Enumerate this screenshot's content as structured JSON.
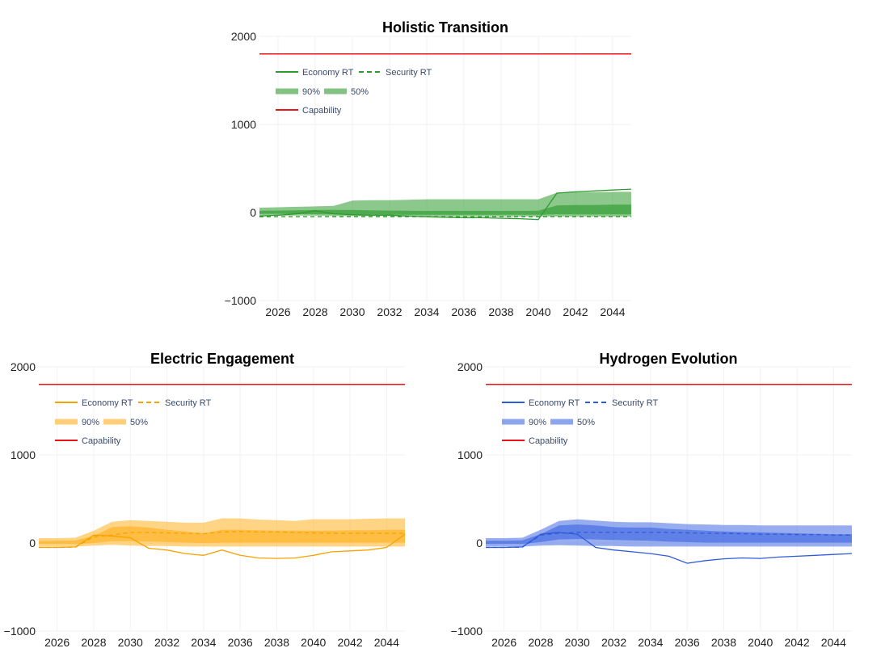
{
  "chart_data": [
    {
      "type": "area",
      "title": "Holistic Transition",
      "color": "#2e9b2e",
      "band_color": "#2e9b2e",
      "xlabel": "",
      "ylabel": "",
      "xlim": [
        2025.0,
        2045.0
      ],
      "ylim": [
        -1000,
        2000
      ],
      "yticks": [
        -1000,
        0,
        1000,
        2000
      ],
      "ytick_labels": [
        "−1000",
        "0",
        "1000",
        "2000"
      ],
      "xticks": [
        2026,
        2028,
        2030,
        2032,
        2034,
        2036,
        2038,
        2040,
        2042,
        2044
      ],
      "capability": 1800,
      "legend": {
        "economy": "Economy RT",
        "security": "Security RT",
        "p90": "90%",
        "p50": "50%",
        "capability": "Capability"
      },
      "years": [
        2025,
        2026,
        2027,
        2028,
        2029,
        2030,
        2031,
        2032,
        2033,
        2034,
        2035,
        2036,
        2037,
        2038,
        2039,
        2040,
        2041,
        2042,
        2043,
        2044,
        2045
      ],
      "p90_upper": [
        55,
        60,
        65,
        70,
        75,
        135,
        140,
        140,
        145,
        150,
        150,
        150,
        150,
        150,
        150,
        150,
        225,
        230,
        230,
        235,
        235
      ],
      "p90_lower": [
        -35,
        -35,
        -35,
        -35,
        -40,
        -40,
        -40,
        -40,
        -45,
        -45,
        -45,
        -45,
        -45,
        -45,
        -45,
        -45,
        -45,
        -45,
        -45,
        -45,
        -45
      ],
      "p50_upper": [
        20,
        22,
        25,
        28,
        30,
        28,
        25,
        22,
        20,
        18,
        18,
        18,
        18,
        18,
        18,
        20,
        80,
        85,
        85,
        90,
        90
      ],
      "p50_lower": [
        -15,
        -15,
        -18,
        -18,
        -20,
        -22,
        -22,
        -25,
        -25,
        -25,
        -25,
        -25,
        -25,
        -25,
        -25,
        -25,
        -20,
        -20,
        -20,
        -20,
        -20
      ],
      "economy": [
        -40,
        -30,
        -15,
        20,
        -15,
        -25,
        -30,
        -30,
        -40,
        -50,
        -55,
        -60,
        -60,
        -65,
        -70,
        -80,
        220,
        235,
        245,
        255,
        265
      ],
      "security": [
        -50,
        -48,
        -48,
        -48,
        -48,
        -48,
        -48,
        -48,
        -48,
        -48,
        -48,
        -48,
        -48,
        -48,
        -48,
        -48,
        -48,
        -48,
        -48,
        -48,
        -48
      ]
    },
    {
      "type": "area",
      "title": "Electric Engagement",
      "color": "#f5a300",
      "band_color": "#ffb020",
      "xlabel": "",
      "ylabel": "",
      "xlim": [
        2025.0,
        2045.0
      ],
      "ylim": [
        -1000,
        2000
      ],
      "yticks": [
        -1000,
        0,
        1000,
        2000
      ],
      "ytick_labels": [
        "−1000",
        "0",
        "1000",
        "2000"
      ],
      "xticks": [
        2026,
        2028,
        2030,
        2032,
        2034,
        2036,
        2038,
        2040,
        2042,
        2044
      ],
      "capability": 1800,
      "legend": {
        "economy": "Economy RT",
        "security": "Security RT",
        "p90": "90%",
        "p50": "50%",
        "capability": "Capability"
      },
      "years": [
        2025,
        2026,
        2027,
        2028,
        2029,
        2030,
        2031,
        2032,
        2033,
        2034,
        2035,
        2036,
        2037,
        2038,
        2039,
        2040,
        2041,
        2042,
        2043,
        2044,
        2045
      ],
      "p90_upper": [
        55,
        55,
        60,
        140,
        240,
        260,
        250,
        240,
        230,
        230,
        280,
        280,
        265,
        260,
        250,
        270,
        270,
        270,
        275,
        280,
        280
      ],
      "p90_lower": [
        -40,
        -40,
        -40,
        -30,
        -20,
        -30,
        -35,
        -35,
        -40,
        -40,
        -40,
        -40,
        -40,
        -40,
        -40,
        -40,
        -40,
        -40,
        -40,
        -40,
        -40
      ],
      "p50_upper": [
        25,
        25,
        28,
        80,
        180,
        190,
        175,
        150,
        130,
        110,
        150,
        150,
        145,
        140,
        140,
        140,
        140,
        145,
        145,
        150,
        150
      ],
      "p50_lower": [
        -10,
        -10,
        -10,
        0,
        20,
        20,
        15,
        10,
        5,
        0,
        5,
        5,
        5,
        5,
        5,
        5,
        5,
        5,
        5,
        5,
        5
      ],
      "economy": [
        -50,
        -50,
        -45,
        90,
        80,
        60,
        -60,
        -80,
        -120,
        -140,
        -80,
        -140,
        -170,
        -175,
        -170,
        -140,
        -100,
        -90,
        -80,
        -50,
        100
      ],
      "security": [
        -50,
        -50,
        -48,
        70,
        90,
        120,
        120,
        115,
        110,
        105,
        125,
        130,
        125,
        125,
        120,
        115,
        110,
        110,
        110,
        110,
        110
      ]
    },
    {
      "type": "area",
      "title": "Hydrogen Evolution",
      "color": "#2f5bd8",
      "band_color": "#4169e1",
      "xlabel": "",
      "ylabel": "",
      "xlim": [
        2025.0,
        2045.0
      ],
      "ylim": [
        -1000,
        2000
      ],
      "yticks": [
        -1000,
        0,
        1000,
        2000
      ],
      "ytick_labels": [
        "−1000",
        "0",
        "1000",
        "2000"
      ],
      "xticks": [
        2026,
        2028,
        2030,
        2032,
        2034,
        2036,
        2038,
        2040,
        2042,
        2044
      ],
      "capability": 1800,
      "legend": {
        "economy": "Economy RT",
        "security": "Security RT",
        "p90": "90%",
        "p50": "50%",
        "capability": "Capability"
      },
      "years": [
        2025,
        2026,
        2027,
        2028,
        2029,
        2030,
        2031,
        2032,
        2033,
        2034,
        2035,
        2036,
        2037,
        2038,
        2039,
        2040,
        2041,
        2042,
        2043,
        2044,
        2045
      ],
      "p90_upper": [
        55,
        55,
        60,
        150,
        250,
        270,
        255,
        240,
        235,
        235,
        225,
        215,
        210,
        205,
        205,
        200,
        200,
        200,
        200,
        200,
        200
      ],
      "p90_lower": [
        -40,
        -40,
        -40,
        -30,
        -25,
        -30,
        -35,
        -35,
        -40,
        -40,
        -40,
        -40,
        -40,
        -40,
        -40,
        -40,
        -40,
        -40,
        -40,
        -40,
        -40
      ],
      "p50_upper": [
        25,
        25,
        30,
        100,
        200,
        210,
        200,
        180,
        175,
        175,
        160,
        150,
        140,
        130,
        125,
        120,
        115,
        110,
        105,
        100,
        100
      ],
      "p50_lower": [
        -10,
        -10,
        -10,
        10,
        40,
        45,
        40,
        35,
        30,
        25,
        15,
        10,
        5,
        5,
        5,
        5,
        5,
        5,
        5,
        5,
        5
      ],
      "economy": [
        -50,
        -50,
        -45,
        100,
        120,
        100,
        -50,
        -80,
        -100,
        -120,
        -150,
        -230,
        -200,
        -180,
        -170,
        -175,
        -160,
        -150,
        -140,
        -130,
        -120
      ],
      "security": [
        -50,
        -50,
        -48,
        90,
        110,
        120,
        120,
        120,
        120,
        120,
        120,
        115,
        110,
        110,
        105,
        100,
        100,
        95,
        95,
        90,
        90
      ]
    }
  ]
}
